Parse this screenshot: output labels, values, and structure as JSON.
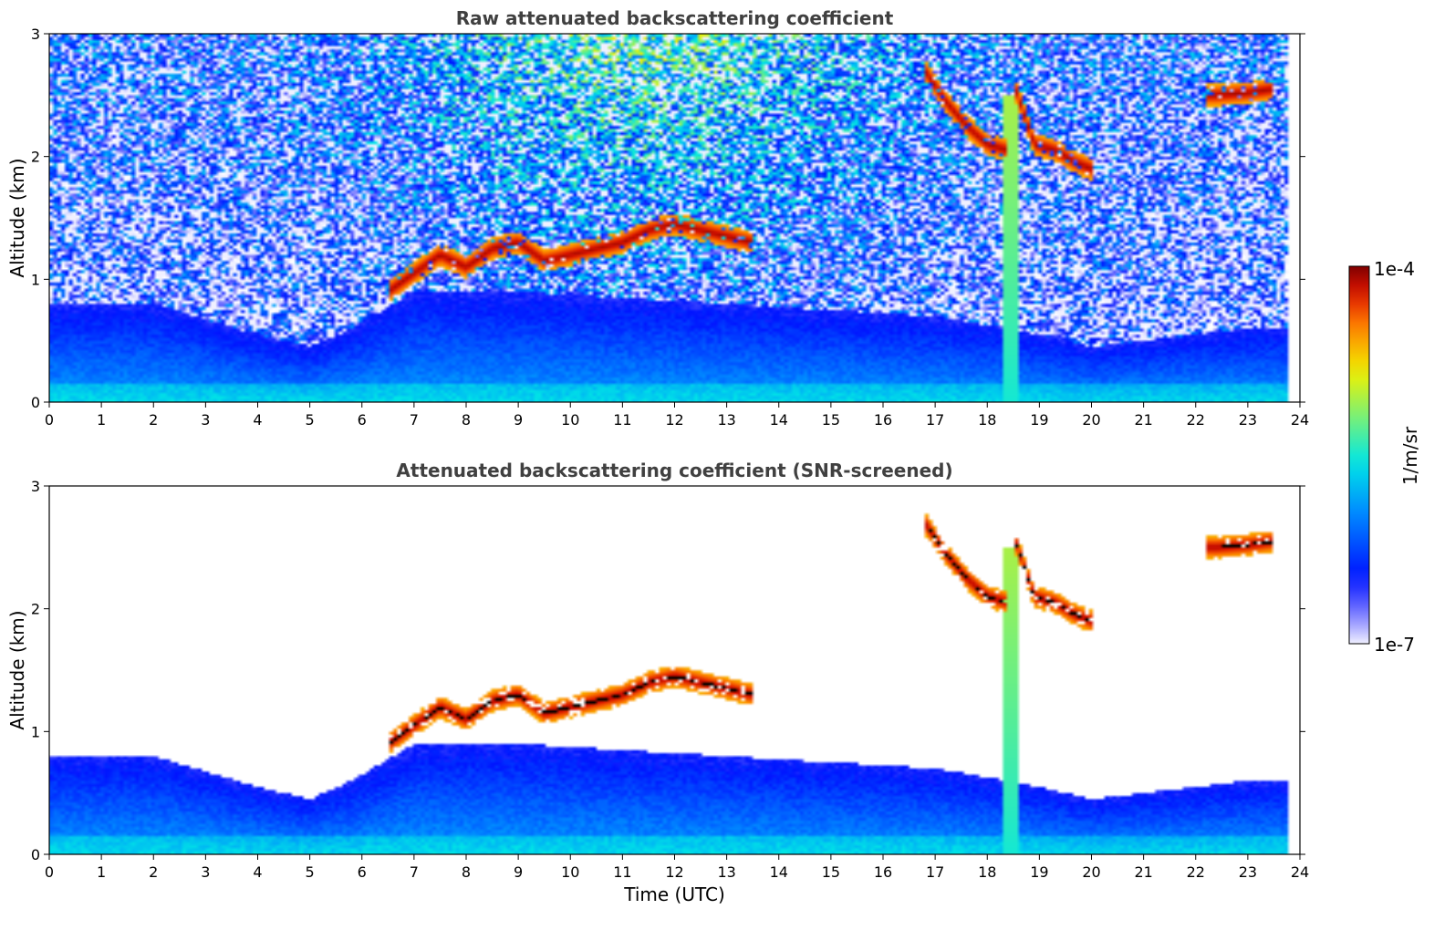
{
  "chart_data": [
    {
      "type": "heatmap",
      "title": "Raw attenuated backscattering coefficient",
      "xlabel": "",
      "ylabel": "Altitude (km)",
      "xlim": [
        0,
        24
      ],
      "ylim": [
        0,
        3
      ],
      "x_ticks": [
        "0",
        "1",
        "2",
        "3",
        "4",
        "5",
        "6",
        "7",
        "8",
        "9",
        "10",
        "11",
        "12",
        "13",
        "14",
        "15",
        "16",
        "17",
        "18",
        "19",
        "20",
        "21",
        "22",
        "23",
        "24"
      ],
      "y_ticks": [
        "0",
        "1",
        "2",
        "3"
      ],
      "grid": false,
      "data_extent_hours": [
        0,
        23.8
      ],
      "colormap": "jet",
      "colorscale": "log",
      "features": [
        {
          "type": "boundary_layer",
          "x": [
            0,
            2,
            4,
            5,
            5.8,
            7,
            9,
            11,
            13,
            15,
            17,
            18.4,
            19,
            20,
            21,
            22,
            23,
            23.8
          ],
          "top_km": [
            0.8,
            0.8,
            0.55,
            0.45,
            0.6,
            0.9,
            0.9,
            0.85,
            0.8,
            0.75,
            0.7,
            0.6,
            0.55,
            0.45,
            0.5,
            0.55,
            0.6,
            0.6
          ]
        },
        {
          "type": "cloud_layer",
          "x": [
            6.5,
            7,
            7.5,
            8,
            8.5,
            9,
            9.5,
            10,
            10.5,
            11,
            11.5,
            12,
            12.5,
            13,
            13.5
          ],
          "altitude_km": [
            0.9,
            1.05,
            1.2,
            1.1,
            1.25,
            1.3,
            1.15,
            1.2,
            1.25,
            1.3,
            1.4,
            1.45,
            1.4,
            1.35,
            1.3
          ]
        },
        {
          "type": "cloud_layer",
          "x": [
            16.8,
            17.2,
            17.6,
            18,
            18.4
          ],
          "altitude_km": [
            2.7,
            2.45,
            2.25,
            2.1,
            2.05
          ]
        },
        {
          "type": "cloud_layer",
          "x": [
            18.5,
            18.9,
            19.3,
            19.7,
            20.0
          ],
          "altitude_km": [
            2.6,
            2.1,
            2.05,
            1.95,
            1.9
          ]
        },
        {
          "type": "cloud_layer",
          "x": [
            22.2,
            22.4,
            23.0,
            23.5
          ],
          "altitude_km": [
            2.5,
            2.5,
            2.52,
            2.55
          ]
        },
        {
          "type": "precipitation",
          "x": 18.45,
          "bottom_km": 0,
          "top_km": 2.5
        }
      ]
    },
    {
      "type": "heatmap",
      "title": "Attenuated backscattering coefficient (SNR-screened)",
      "xlabel": "Time (UTC)",
      "ylabel": "Altitude (km)",
      "xlim": [
        0,
        24
      ],
      "ylim": [
        0,
        3
      ],
      "x_ticks": [
        "0",
        "1",
        "2",
        "3",
        "4",
        "5",
        "6",
        "7",
        "8",
        "9",
        "10",
        "11",
        "12",
        "13",
        "14",
        "15",
        "16",
        "17",
        "18",
        "19",
        "20",
        "21",
        "22",
        "23",
        "24"
      ],
      "y_ticks": [
        "0",
        "1",
        "2",
        "3"
      ],
      "grid": false,
      "data_extent_hours": [
        0,
        23.8
      ],
      "colormap": "jet",
      "colorscale": "log"
    }
  ],
  "colorbar": {
    "min_label": "1e-7",
    "max_label": "1e-4",
    "min": 1e-07,
    "max": 0.0001,
    "unit_label": "1/m/sr",
    "scale": "log"
  },
  "colors": {
    "title": "#404040",
    "background": "#ffffff",
    "cloud": "#7f0000",
    "clear_air_base": "#0018ff",
    "surface": "#33d0ff"
  }
}
